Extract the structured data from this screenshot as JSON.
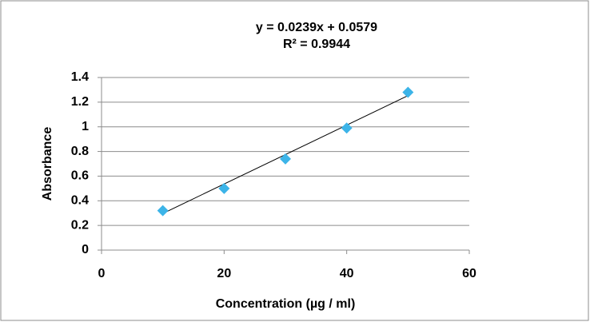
{
  "chart_data": {
    "type": "scatter",
    "annotations": [
      "y = 0.0239x + 0.0579",
      "R² = 0.9944"
    ],
    "x_label": "Concentration (µg / ml)",
    "y_label": "Absorbance",
    "x": [
      10,
      20,
      30,
      40,
      50
    ],
    "values": [
      0.32,
      0.5,
      0.74,
      0.99,
      1.28
    ],
    "color": "#3cb4e8",
    "trendline": {
      "slope": 0.0239,
      "intercept": 0.0579,
      "color": "#000000"
    },
    "xlim": [
      0,
      60
    ],
    "xticks": [
      0,
      20,
      40,
      60
    ],
    "ylim": [
      0,
      1.4
    ],
    "yticks": [
      0,
      0.2,
      0.4,
      0.6,
      0.8,
      1,
      1.2,
      1.4
    ],
    "grid": true
  }
}
